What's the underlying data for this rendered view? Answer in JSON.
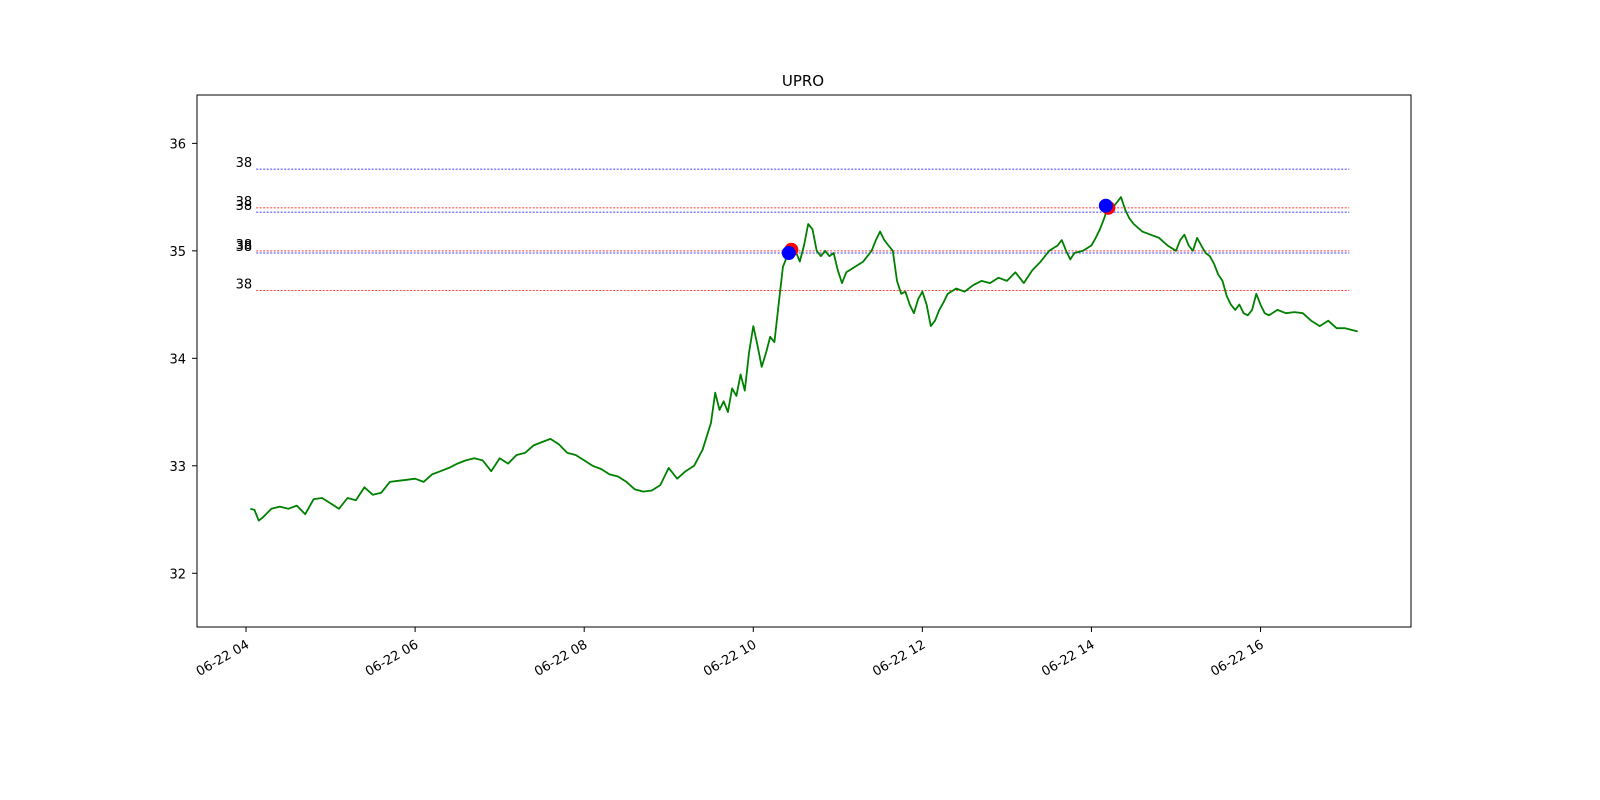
{
  "chart_data": {
    "type": "line",
    "title": "UPRO",
    "xlabel": "",
    "ylabel": "",
    "x_axis": {
      "type": "time",
      "date": "06-22",
      "range_hours": [
        3.42,
        17.78
      ],
      "ticks": [
        {
          "hour": 4,
          "label": "06-22 04"
        },
        {
          "hour": 6,
          "label": "06-22 06"
        },
        {
          "hour": 8,
          "label": "06-22 08"
        },
        {
          "hour": 10,
          "label": "06-22 10"
        },
        {
          "hour": 12,
          "label": "06-22 12"
        },
        {
          "hour": 14,
          "label": "06-22 14"
        },
        {
          "hour": 16,
          "label": "06-22 16"
        }
      ]
    },
    "y_axis": {
      "range": [
        31.5,
        36.45
      ],
      "ticks": [
        32,
        33,
        34,
        35,
        36
      ]
    },
    "grid": false,
    "series": [
      {
        "color": "#008000",
        "points": [
          [
            4.05,
            32.6
          ],
          [
            4.1,
            32.59
          ],
          [
            4.15,
            32.49
          ],
          [
            4.2,
            32.52
          ],
          [
            4.3,
            32.6
          ],
          [
            4.4,
            32.62
          ],
          [
            4.5,
            32.6
          ],
          [
            4.6,
            32.63
          ],
          [
            4.7,
            32.55
          ],
          [
            4.8,
            32.69
          ],
          [
            4.9,
            32.7
          ],
          [
            5.0,
            32.65
          ],
          [
            5.1,
            32.6
          ],
          [
            5.2,
            32.7
          ],
          [
            5.3,
            32.68
          ],
          [
            5.4,
            32.8
          ],
          [
            5.5,
            32.73
          ],
          [
            5.6,
            32.75
          ],
          [
            5.7,
            32.85
          ],
          [
            5.8,
            32.86
          ],
          [
            5.9,
            32.87
          ],
          [
            6.0,
            32.88
          ],
          [
            6.1,
            32.85
          ],
          [
            6.2,
            32.92
          ],
          [
            6.3,
            32.95
          ],
          [
            6.4,
            32.98
          ],
          [
            6.5,
            33.02
          ],
          [
            6.6,
            33.05
          ],
          [
            6.7,
            33.07
          ],
          [
            6.8,
            33.05
          ],
          [
            6.9,
            32.95
          ],
          [
            7.0,
            33.07
          ],
          [
            7.1,
            33.02
          ],
          [
            7.2,
            33.1
          ],
          [
            7.3,
            33.12
          ],
          [
            7.4,
            33.19
          ],
          [
            7.5,
            33.22
          ],
          [
            7.6,
            33.25
          ],
          [
            7.7,
            33.2
          ],
          [
            7.8,
            33.12
          ],
          [
            7.9,
            33.1
          ],
          [
            8.0,
            33.05
          ],
          [
            8.1,
            33.0
          ],
          [
            8.2,
            32.97
          ],
          [
            8.3,
            32.92
          ],
          [
            8.4,
            32.9
          ],
          [
            8.5,
            32.85
          ],
          [
            8.6,
            32.78
          ],
          [
            8.7,
            32.76
          ],
          [
            8.8,
            32.77
          ],
          [
            8.9,
            32.82
          ],
          [
            9.0,
            32.98
          ],
          [
            9.1,
            32.88
          ],
          [
            9.2,
            32.95
          ],
          [
            9.3,
            33.0
          ],
          [
            9.4,
            33.15
          ],
          [
            9.5,
            33.4
          ],
          [
            9.55,
            33.68
          ],
          [
            9.6,
            33.52
          ],
          [
            9.65,
            33.6
          ],
          [
            9.7,
            33.5
          ],
          [
            9.75,
            33.72
          ],
          [
            9.8,
            33.65
          ],
          [
            9.85,
            33.85
          ],
          [
            9.9,
            33.7
          ],
          [
            9.95,
            34.05
          ],
          [
            10.0,
            34.3
          ],
          [
            10.05,
            34.12
          ],
          [
            10.1,
            33.92
          ],
          [
            10.15,
            34.05
          ],
          [
            10.2,
            34.2
          ],
          [
            10.25,
            34.15
          ],
          [
            10.3,
            34.5
          ],
          [
            10.35,
            34.85
          ],
          [
            10.4,
            34.95
          ],
          [
            10.45,
            35.02
          ],
          [
            10.5,
            35.0
          ],
          [
            10.55,
            34.9
          ],
          [
            10.6,
            35.05
          ],
          [
            10.65,
            35.25
          ],
          [
            10.7,
            35.2
          ],
          [
            10.75,
            35.0
          ],
          [
            10.8,
            34.95
          ],
          [
            10.85,
            35.0
          ],
          [
            10.9,
            34.95
          ],
          [
            10.95,
            34.98
          ],
          [
            11.0,
            34.82
          ],
          [
            11.05,
            34.7
          ],
          [
            11.1,
            34.8
          ],
          [
            11.2,
            34.85
          ],
          [
            11.3,
            34.9
          ],
          [
            11.4,
            35.0
          ],
          [
            11.45,
            35.1
          ],
          [
            11.5,
            35.18
          ],
          [
            11.55,
            35.1
          ],
          [
            11.6,
            35.05
          ],
          [
            11.65,
            35.0
          ],
          [
            11.7,
            34.72
          ],
          [
            11.75,
            34.6
          ],
          [
            11.8,
            34.62
          ],
          [
            11.85,
            34.5
          ],
          [
            11.9,
            34.42
          ],
          [
            11.95,
            34.55
          ],
          [
            12.0,
            34.62
          ],
          [
            12.05,
            34.5
          ],
          [
            12.1,
            34.3
          ],
          [
            12.15,
            34.35
          ],
          [
            12.2,
            34.45
          ],
          [
            12.25,
            34.52
          ],
          [
            12.3,
            34.6
          ],
          [
            12.4,
            34.65
          ],
          [
            12.5,
            34.62
          ],
          [
            12.6,
            34.68
          ],
          [
            12.7,
            34.72
          ],
          [
            12.8,
            34.7
          ],
          [
            12.9,
            34.75
          ],
          [
            13.0,
            34.72
          ],
          [
            13.1,
            34.8
          ],
          [
            13.2,
            34.7
          ],
          [
            13.3,
            34.82
          ],
          [
            13.4,
            34.9
          ],
          [
            13.5,
            35.0
          ],
          [
            13.6,
            35.05
          ],
          [
            13.65,
            35.1
          ],
          [
            13.7,
            35.0
          ],
          [
            13.75,
            34.92
          ],
          [
            13.8,
            34.98
          ],
          [
            13.9,
            35.0
          ],
          [
            14.0,
            35.05
          ],
          [
            14.05,
            35.12
          ],
          [
            14.1,
            35.2
          ],
          [
            14.15,
            35.3
          ],
          [
            14.2,
            35.42
          ],
          [
            14.25,
            35.4
          ],
          [
            14.3,
            35.45
          ],
          [
            14.35,
            35.5
          ],
          [
            14.4,
            35.38
          ],
          [
            14.45,
            35.3
          ],
          [
            14.5,
            35.25
          ],
          [
            14.6,
            35.18
          ],
          [
            14.7,
            35.15
          ],
          [
            14.8,
            35.12
          ],
          [
            14.9,
            35.05
          ],
          [
            15.0,
            35.0
          ],
          [
            15.05,
            35.1
          ],
          [
            15.1,
            35.15
          ],
          [
            15.15,
            35.05
          ],
          [
            15.2,
            35.0
          ],
          [
            15.25,
            35.12
          ],
          [
            15.3,
            35.05
          ],
          [
            15.35,
            34.98
          ],
          [
            15.4,
            34.95
          ],
          [
            15.45,
            34.88
          ],
          [
            15.5,
            34.78
          ],
          [
            15.55,
            34.72
          ],
          [
            15.6,
            34.58
          ],
          [
            15.65,
            34.5
          ],
          [
            15.7,
            34.45
          ],
          [
            15.75,
            34.5
          ],
          [
            15.8,
            34.42
          ],
          [
            15.85,
            34.4
          ],
          [
            15.9,
            34.45
          ],
          [
            15.95,
            34.6
          ],
          [
            16.0,
            34.5
          ],
          [
            16.05,
            34.42
          ],
          [
            16.1,
            34.4
          ],
          [
            16.2,
            34.45
          ],
          [
            16.3,
            34.42
          ],
          [
            16.4,
            34.43
          ],
          [
            16.5,
            34.42
          ],
          [
            16.6,
            34.35
          ],
          [
            16.7,
            34.3
          ],
          [
            16.8,
            34.35
          ],
          [
            16.9,
            34.28
          ],
          [
            17.0,
            34.28
          ],
          [
            17.1,
            34.26
          ],
          [
            17.15,
            34.25
          ]
        ]
      }
    ],
    "horizontal_levels": [
      {
        "y": 35.76,
        "color": "#0000ff",
        "label": "38"
      },
      {
        "y": 35.4,
        "color": "#ff0000",
        "label": "38"
      },
      {
        "y": 35.36,
        "color": "#0000ff",
        "label": "38"
      },
      {
        "y": 35.0,
        "color": "#ff0000",
        "label": "38"
      },
      {
        "y": 34.98,
        "color": "#0000ff",
        "label": "38"
      },
      {
        "y": 34.63,
        "color": "#ff0000",
        "label": "38"
      }
    ],
    "markers": [
      {
        "x": 10.45,
        "y": 35.01,
        "color": "#ff0000"
      },
      {
        "x": 10.42,
        "y": 34.98,
        "color": "#0000ff"
      },
      {
        "x": 14.2,
        "y": 35.4,
        "color": "#ff0000"
      },
      {
        "x": 14.17,
        "y": 35.42,
        "color": "#0000ff"
      }
    ],
    "levels_x_range": [
      4.12,
      17.05
    ]
  }
}
